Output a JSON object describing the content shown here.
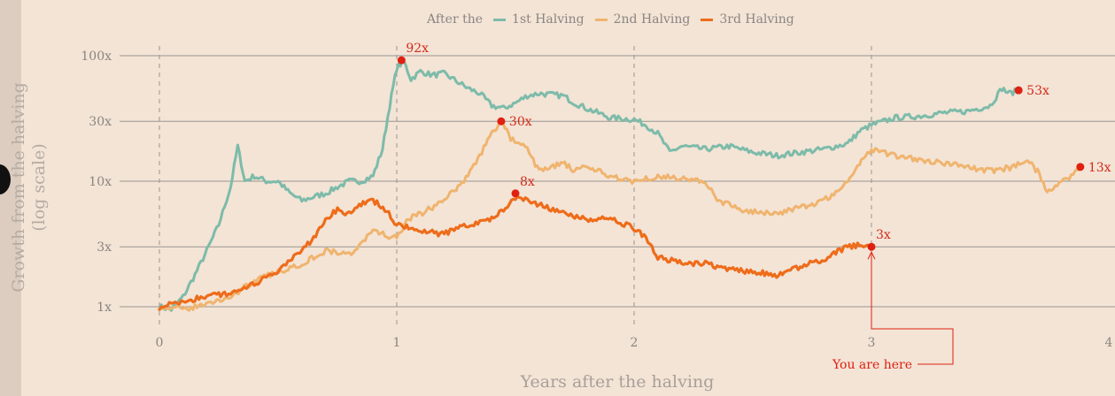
{
  "legend": {
    "prefix": "After the",
    "items": [
      {
        "label": "1st Halving",
        "color": "#7dbba9"
      },
      {
        "label": "2nd Halving",
        "color": "#f0b46e"
      },
      {
        "label": "3rd Halving",
        "color": "#ee6c1a"
      }
    ]
  },
  "chart_data": {
    "type": "line",
    "xlabel": "Years after the halving",
    "ylabel": "Growth from the halving",
    "ylabel_note": "(log scale)",
    "y_scale": "log",
    "xlim": [
      -0.2,
      4
    ],
    "ylim": [
      0.6,
      130
    ],
    "x_ticks": [
      0,
      1,
      2,
      3,
      4
    ],
    "y_ticks": [
      {
        "value": 1,
        "label": "1x"
      },
      {
        "value": 3,
        "label": "3x"
      },
      {
        "value": 10,
        "label": "10x"
      },
      {
        "value": 30,
        "label": "30x"
      },
      {
        "value": 100,
        "label": "100x"
      }
    ],
    "grid": "horizontal",
    "series": [
      {
        "name": "1st Halving",
        "color": "#7dbba9",
        "points": [
          [
            0,
            1
          ],
          [
            0.05,
            0.95
          ],
          [
            0.1,
            1.2
          ],
          [
            0.15,
            1.8
          ],
          [
            0.2,
            2.8
          ],
          [
            0.25,
            4.5
          ],
          [
            0.3,
            9
          ],
          [
            0.33,
            19
          ],
          [
            0.36,
            10
          ],
          [
            0.4,
            11
          ],
          [
            0.45,
            10
          ],
          [
            0.5,
            10
          ],
          [
            0.55,
            8
          ],
          [
            0.6,
            7
          ],
          [
            0.65,
            7.5
          ],
          [
            0.7,
            8
          ],
          [
            0.75,
            9
          ],
          [
            0.8,
            10
          ],
          [
            0.85,
            10
          ],
          [
            0.9,
            11
          ],
          [
            0.94,
            18
          ],
          [
            0.97,
            40
          ],
          [
            1.0,
            80
          ],
          [
            1.03,
            90
          ],
          [
            1.06,
            65
          ],
          [
            1.1,
            75
          ],
          [
            1.15,
            70
          ],
          [
            1.2,
            72
          ],
          [
            1.3,
            55
          ],
          [
            1.35,
            50
          ],
          [
            1.4,
            40
          ],
          [
            1.45,
            38
          ],
          [
            1.5,
            42
          ],
          [
            1.55,
            48
          ],
          [
            1.6,
            50
          ],
          [
            1.7,
            48
          ],
          [
            1.75,
            42
          ],
          [
            1.8,
            38
          ],
          [
            1.9,
            32
          ],
          [
            2.0,
            31
          ],
          [
            2.05,
            28
          ],
          [
            2.1,
            24
          ],
          [
            2.15,
            17
          ],
          [
            2.2,
            19
          ],
          [
            2.3,
            18
          ],
          [
            2.4,
            19
          ],
          [
            2.5,
            17
          ],
          [
            2.6,
            16
          ],
          [
            2.7,
            17
          ],
          [
            2.8,
            18
          ],
          [
            2.9,
            20
          ],
          [
            2.95,
            25
          ],
          [
            3.0,
            28
          ],
          [
            3.1,
            32
          ],
          [
            3.2,
            33
          ],
          [
            3.3,
            35
          ],
          [
            3.4,
            36
          ],
          [
            3.5,
            40
          ],
          [
            3.55,
            55
          ],
          [
            3.58,
            50
          ],
          [
            3.62,
            53
          ]
        ]
      },
      {
        "name": "2nd Halving",
        "color": "#f0b46e",
        "points": [
          [
            0,
            1
          ],
          [
            0.1,
            0.95
          ],
          [
            0.2,
            1.05
          ],
          [
            0.3,
            1.2
          ],
          [
            0.4,
            1.6
          ],
          [
            0.5,
            1.9
          ],
          [
            0.6,
            2.2
          ],
          [
            0.7,
            2.8
          ],
          [
            0.8,
            2.6
          ],
          [
            0.85,
            3.2
          ],
          [
            0.9,
            4
          ],
          [
            1.0,
            3.5
          ],
          [
            1.05,
            5
          ],
          [
            1.1,
            5.5
          ],
          [
            1.2,
            7
          ],
          [
            1.3,
            11
          ],
          [
            1.35,
            16
          ],
          [
            1.4,
            24
          ],
          [
            1.44,
            30
          ],
          [
            1.48,
            22
          ],
          [
            1.55,
            18
          ],
          [
            1.6,
            12
          ],
          [
            1.7,
            14
          ],
          [
            1.75,
            12
          ],
          [
            1.8,
            13
          ],
          [
            1.9,
            11
          ],
          [
            2.0,
            10
          ],
          [
            2.1,
            11
          ],
          [
            2.2,
            10.5
          ],
          [
            2.3,
            10
          ],
          [
            2.35,
            7
          ],
          [
            2.45,
            6
          ],
          [
            2.55,
            5.5
          ],
          [
            2.65,
            5.8
          ],
          [
            2.75,
            6.5
          ],
          [
            2.85,
            8
          ],
          [
            2.9,
            10
          ],
          [
            2.95,
            14
          ],
          [
            3.0,
            18
          ],
          [
            3.1,
            16
          ],
          [
            3.2,
            15
          ],
          [
            3.3,
            14
          ],
          [
            3.4,
            13
          ],
          [
            3.5,
            12
          ],
          [
            3.6,
            13
          ],
          [
            3.65,
            15
          ],
          [
            3.7,
            12
          ],
          [
            3.74,
            8
          ],
          [
            3.8,
            10
          ],
          [
            3.85,
            11
          ],
          [
            3.88,
            13
          ]
        ]
      },
      {
        "name": "3rd Halving",
        "color": "#ee6c1a",
        "points": [
          [
            0,
            1
          ],
          [
            0.1,
            1.1
          ],
          [
            0.2,
            1.2
          ],
          [
            0.3,
            1.3
          ],
          [
            0.4,
            1.5
          ],
          [
            0.5,
            1.9
          ],
          [
            0.6,
            2.8
          ],
          [
            0.65,
            3.5
          ],
          [
            0.7,
            5
          ],
          [
            0.75,
            6
          ],
          [
            0.8,
            5.5
          ],
          [
            0.85,
            6.5
          ],
          [
            0.9,
            7
          ],
          [
            0.95,
            6
          ],
          [
            1.0,
            4.5
          ],
          [
            1.1,
            4
          ],
          [
            1.2,
            3.8
          ],
          [
            1.3,
            4.5
          ],
          [
            1.4,
            5
          ],
          [
            1.45,
            6
          ],
          [
            1.5,
            7.5
          ],
          [
            1.55,
            7
          ],
          [
            1.6,
            6.5
          ],
          [
            1.7,
            5.5
          ],
          [
            1.8,
            5
          ],
          [
            1.9,
            5
          ],
          [
            2.0,
            4.2
          ],
          [
            2.05,
            3.5
          ],
          [
            2.1,
            2.5
          ],
          [
            2.2,
            2.2
          ],
          [
            2.3,
            2.2
          ],
          [
            2.4,
            2.0
          ],
          [
            2.5,
            1.9
          ],
          [
            2.6,
            1.8
          ],
          [
            2.7,
            2.1
          ],
          [
            2.8,
            2.4
          ],
          [
            2.9,
            3
          ],
          [
            2.95,
            3.1
          ],
          [
            3.0,
            3
          ]
        ]
      }
    ],
    "annotations": [
      {
        "series": "1st Halving",
        "x": 1.02,
        "y": 92,
        "label": "92x",
        "label_pos": "above-right"
      },
      {
        "series": "1st Halving",
        "x": 3.62,
        "y": 53,
        "label": "53x",
        "label_pos": "right"
      },
      {
        "series": "2nd Halving",
        "x": 1.44,
        "y": 30,
        "label": "30x",
        "label_pos": "right"
      },
      {
        "series": "2nd Halving",
        "x": 3.88,
        "y": 13,
        "label": "13x",
        "label_pos": "right"
      },
      {
        "series": "3rd Halving",
        "x": 1.5,
        "y": 8,
        "label": "8x",
        "label_pos": "above-right"
      },
      {
        "series": "3rd Halving",
        "x": 3.0,
        "y": 3,
        "label": "3x",
        "label_pos": "above-right"
      }
    ],
    "callout": {
      "text": "You are here",
      "x": 3.0,
      "y": 3,
      "color": "#e02010"
    },
    "colors": {
      "marker": "#e02010",
      "label": "#d42a1a",
      "tick": "#8a8580",
      "grid": "#9a9590",
      "vline": "#9a9590"
    }
  }
}
